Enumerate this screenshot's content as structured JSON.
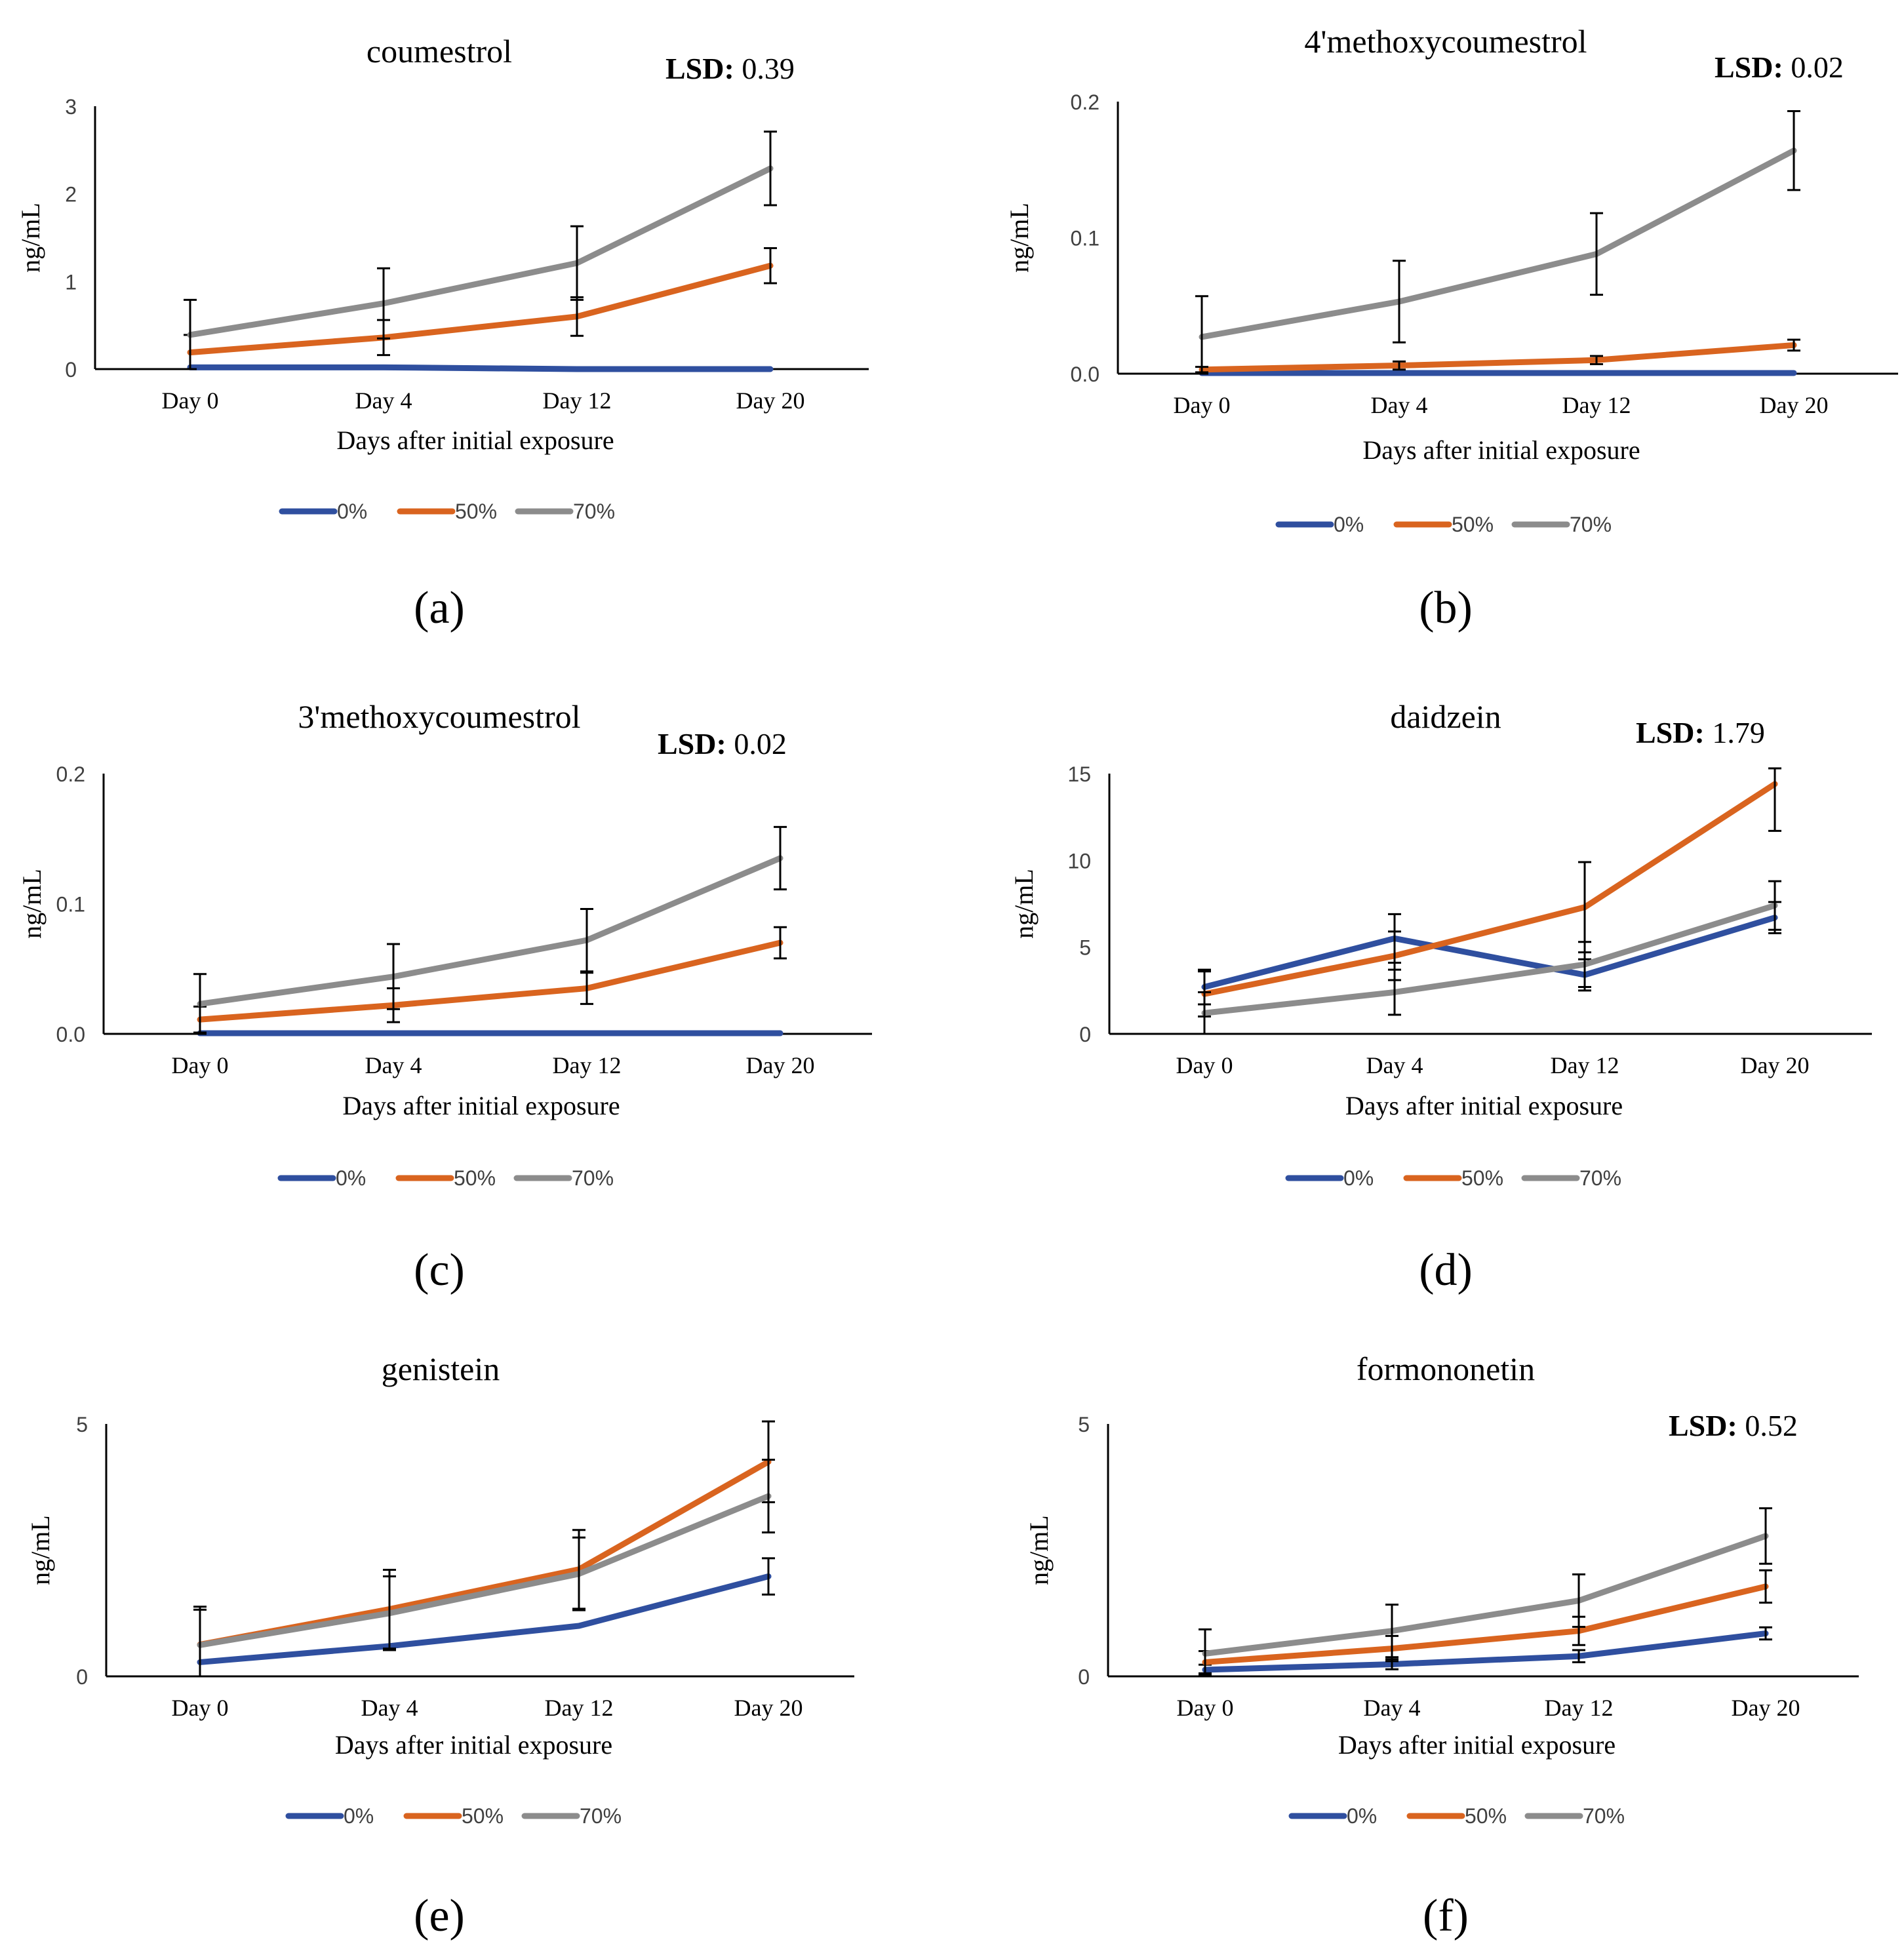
{
  "figure": {
    "background": "#ffffff",
    "series_colors": {
      "0%": "#2f4f9f",
      "50%": "#d9641f",
      "70%": "#8c8c8c"
    },
    "axis_color": "#000000"
  },
  "chart_data": [
    {
      "type": "line",
      "panel_label": "(a)",
      "title": "coumestrol",
      "lsd_label": "LSD:",
      "lsd_value": "0.39",
      "xlabel": "Days after initial exposure",
      "ylabel": "ng/mL",
      "categories": [
        "Day 0",
        "Day 4",
        "Day 12",
        "Day 20"
      ],
      "ylim": [
        0,
        3
      ],
      "yticks": [
        "0",
        "1",
        "2",
        "3"
      ],
      "ytick_values": [
        0,
        1,
        2,
        3
      ],
      "series": [
        {
          "name": "0%",
          "values": [
            0.02,
            0.02,
            0.0,
            0.0
          ],
          "errors": [
            0,
            0,
            0,
            0
          ]
        },
        {
          "name": "50%",
          "values": [
            0.19,
            0.36,
            0.6,
            1.18
          ],
          "errors": [
            0.2,
            0.2,
            0.22,
            0.2
          ]
        },
        {
          "name": "70%",
          "values": [
            0.39,
            0.75,
            1.21,
            2.29
          ],
          "errors": [
            0.4,
            0.4,
            0.42,
            0.42
          ]
        }
      ]
    },
    {
      "type": "line",
      "panel_label": "(b)",
      "title": "4'methoxycoumestrol",
      "lsd_label": "LSD:",
      "lsd_value": "0.02",
      "xlabel": "Days after initial exposure",
      "ylabel": "ng/mL",
      "categories": [
        "Day 0",
        "Day 4",
        "Day 12",
        "Day 20"
      ],
      "ylim": [
        0,
        0.2
      ],
      "yticks": [
        "0.0",
        "0.1",
        "0.2"
      ],
      "ytick_values": [
        0,
        0.1,
        0.2
      ],
      "series": [
        {
          "name": "0%",
          "values": [
            0.0005,
            0.0005,
            0.0005,
            0.0005
          ],
          "errors": [
            0,
            0,
            0,
            0
          ]
        },
        {
          "name": "50%",
          "values": [
            0.003,
            0.006,
            0.01,
            0.021
          ],
          "errors": [
            0.002,
            0.003,
            0.003,
            0.004
          ]
        },
        {
          "name": "70%",
          "values": [
            0.027,
            0.053,
            0.088,
            0.164
          ],
          "errors": [
            0.03,
            0.03,
            0.03,
            0.029
          ]
        }
      ]
    },
    {
      "type": "line",
      "panel_label": "(c)",
      "title": "3'methoxycoumestrol",
      "lsd_label": "LSD:",
      "lsd_value": "0.02",
      "xlabel": "Days after initial exposure",
      "ylabel": "ng/mL",
      "categories": [
        "Day 0",
        "Day 4",
        "Day 12",
        "Day 20"
      ],
      "ylim": [
        0,
        0.2
      ],
      "yticks": [
        "0.0",
        "0.1",
        "0.2"
      ],
      "ytick_values": [
        0,
        0.1,
        0.2
      ],
      "series": [
        {
          "name": "0%",
          "values": [
            0.0005,
            0.0005,
            0.0005,
            0.0005
          ],
          "errors": [
            0,
            0,
            0,
            0
          ]
        },
        {
          "name": "50%",
          "values": [
            0.011,
            0.022,
            0.035,
            0.07
          ],
          "errors": [
            0.01,
            0.013,
            0.012,
            0.012
          ]
        },
        {
          "name": "70%",
          "values": [
            0.023,
            0.044,
            0.072,
            0.135
          ],
          "errors": [
            0.023,
            0.025,
            0.024,
            0.024
          ]
        }
      ]
    },
    {
      "type": "line",
      "panel_label": "(d)",
      "title": "daidzein",
      "lsd_label": "LSD:",
      "lsd_value": "1.79",
      "xlabel": "Days after initial exposure",
      "ylabel": "ng/mL",
      "categories": [
        "Day 0",
        "Day 4",
        "Day 12",
        "Day 20"
      ],
      "ylim": [
        0,
        15
      ],
      "yticks": [
        "0",
        "5",
        "10",
        "15"
      ],
      "ytick_values": [
        0,
        5,
        10,
        15
      ],
      "series": [
        {
          "name": "0%",
          "values": [
            2.7,
            5.5,
            3.4,
            6.7
          ],
          "errors": [
            1.0,
            1.4,
            0.9,
            0.9
          ]
        },
        {
          "name": "50%",
          "values": [
            2.3,
            4.5,
            7.3,
            14.4
          ],
          "errors": [
            1.3,
            1.4,
            2.6,
            2.7
          ]
        },
        {
          "name": "70%",
          "values": [
            1.2,
            2.4,
            4.0,
            7.4
          ],
          "errors": [
            1.2,
            1.3,
            1.3,
            1.4
          ]
        }
      ]
    },
    {
      "type": "line",
      "panel_label": "(e)",
      "title": "genistein",
      "lsd_label": "",
      "lsd_value": "",
      "xlabel": "Days after initial exposure",
      "ylabel": "ng/mL",
      "categories": [
        "Day 0",
        "Day 4",
        "Day 12",
        "Day 20"
      ],
      "ylim": [
        0,
        5
      ],
      "yticks": [
        "0",
        "5"
      ],
      "ytick_values": [
        0,
        5
      ],
      "series": [
        {
          "name": "0%",
          "values": [
            0.28,
            0.6,
            1.0,
            1.98
          ],
          "errors": [
            0,
            0,
            0,
            0.36
          ]
        },
        {
          "name": "50%",
          "values": [
            0.63,
            1.33,
            2.12,
            4.25
          ],
          "errors": [
            0.75,
            0.78,
            0.78,
            0.8
          ]
        },
        {
          "name": "70%",
          "values": [
            0.62,
            1.25,
            2.03,
            3.57
          ],
          "errors": [
            0.7,
            0.73,
            0.72,
            0.72
          ]
        }
      ]
    },
    {
      "type": "line",
      "panel_label": "(f)",
      "title": "formononetin",
      "lsd_label": "LSD:",
      "lsd_value": "0.52",
      "xlabel": "Days after initial exposure",
      "ylabel": "ng/mL",
      "categories": [
        "Day 0",
        "Day 4",
        "Day 12",
        "Day 20"
      ],
      "ylim": [
        0,
        5
      ],
      "yticks": [
        "0",
        "5"
      ],
      "ytick_values": [
        0,
        5
      ],
      "series": [
        {
          "name": "0%",
          "values": [
            0.13,
            0.24,
            0.4,
            0.85
          ],
          "errors": [
            0.1,
            0.1,
            0.12,
            0.12
          ]
        },
        {
          "name": "50%",
          "values": [
            0.28,
            0.55,
            0.9,
            1.78
          ],
          "errors": [
            0.22,
            0.25,
            0.28,
            0.32
          ]
        },
        {
          "name": "70%",
          "values": [
            0.45,
            0.9,
            1.5,
            2.78
          ],
          "errors": [
            0.48,
            0.52,
            0.52,
            0.55
          ]
        }
      ]
    }
  ]
}
